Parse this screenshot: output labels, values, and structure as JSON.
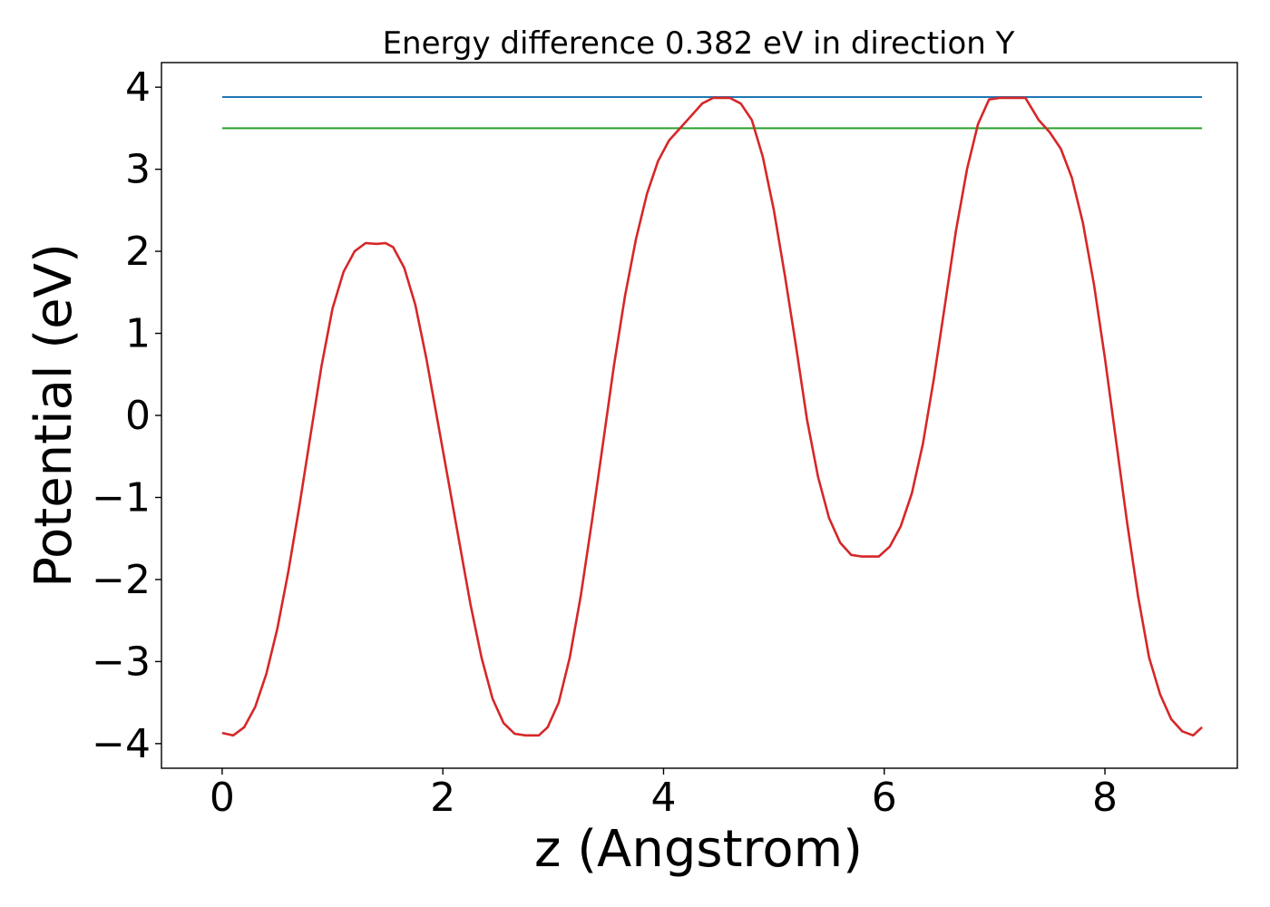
{
  "chart_data": {
    "type": "line",
    "title": "Energy difference 0.382 eV in direction Y",
    "xlabel": "z (Angstrom)",
    "ylabel": "Potential (eV)",
    "xlim": [
      -0.55,
      9.2
    ],
    "ylim": [
      -4.3,
      4.3
    ],
    "x_ticks": [
      0,
      2,
      4,
      6,
      8
    ],
    "x_tick_labels": [
      "0",
      "2",
      "4",
      "6",
      "8"
    ],
    "y_ticks": [
      -4,
      -3,
      -2,
      -1,
      0,
      1,
      2,
      3,
      4
    ],
    "y_tick_labels": [
      "−4",
      "−3",
      "−2",
      "−1",
      "0",
      "1",
      "2",
      "3",
      "4"
    ],
    "grid": false,
    "series": [
      {
        "color": "#d62728",
        "x": [
          0.0,
          0.1,
          0.2,
          0.3,
          0.4,
          0.5,
          0.6,
          0.7,
          0.8,
          0.9,
          1.0,
          1.1,
          1.2,
          1.3,
          1.4,
          1.48,
          1.55,
          1.65,
          1.75,
          1.85,
          1.95,
          2.05,
          2.15,
          2.25,
          2.35,
          2.45,
          2.55,
          2.65,
          2.75,
          2.87,
          2.95,
          3.05,
          3.15,
          3.25,
          3.35,
          3.45,
          3.55,
          3.65,
          3.75,
          3.85,
          3.95,
          4.05,
          4.15,
          4.25,
          4.35,
          4.45,
          4.6,
          4.7,
          4.8,
          4.9,
          5.0,
          5.1,
          5.2,
          5.3,
          5.4,
          5.5,
          5.6,
          5.7,
          5.8,
          5.95,
          6.05,
          6.15,
          6.25,
          6.35,
          6.45,
          6.55,
          6.65,
          6.75,
          6.85,
          6.95,
          7.05,
          7.15,
          7.28,
          7.4,
          7.5,
          7.6,
          7.7,
          7.8,
          7.9,
          8.0,
          8.1,
          8.2,
          8.3,
          8.4,
          8.5,
          8.6,
          8.7,
          8.8,
          8.88
        ],
        "y": [
          -3.87,
          -3.9,
          -3.8,
          -3.55,
          -3.15,
          -2.6,
          -1.9,
          -1.1,
          -0.25,
          0.6,
          1.3,
          1.75,
          2.0,
          2.1,
          2.09,
          2.1,
          2.05,
          1.8,
          1.35,
          0.7,
          -0.05,
          -0.8,
          -1.55,
          -2.3,
          -2.95,
          -3.45,
          -3.75,
          -3.88,
          -3.9,
          -3.9,
          -3.8,
          -3.5,
          -2.95,
          -2.2,
          -1.3,
          -0.35,
          0.6,
          1.45,
          2.15,
          2.7,
          3.1,
          3.35,
          3.5,
          3.65,
          3.8,
          3.87,
          3.87,
          3.8,
          3.6,
          3.15,
          2.5,
          1.7,
          0.85,
          -0.05,
          -0.75,
          -1.25,
          -1.55,
          -1.7,
          -1.72,
          -1.72,
          -1.6,
          -1.35,
          -0.95,
          -0.35,
          0.45,
          1.35,
          2.25,
          3.0,
          3.55,
          3.85,
          3.87,
          3.87,
          3.87,
          3.6,
          3.45,
          3.25,
          2.9,
          2.35,
          1.6,
          0.7,
          -0.3,
          -1.3,
          -2.2,
          -2.95,
          -3.4,
          -3.7,
          -3.85,
          -3.9,
          -3.8
        ]
      },
      {
        "color": "#1f77b4",
        "x": [
          0.0,
          8.88
        ],
        "y": [
          3.88,
          3.88
        ]
      },
      {
        "color": "#2ca02c",
        "x": [
          0.0,
          8.88
        ],
        "y": [
          3.5,
          3.5
        ]
      }
    ]
  }
}
